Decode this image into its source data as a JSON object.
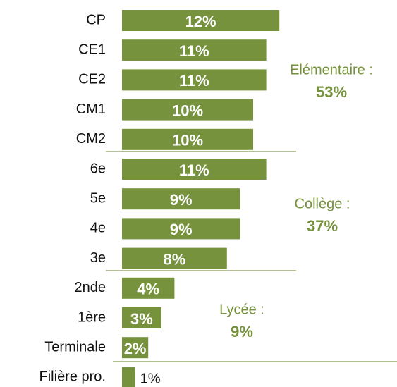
{
  "chart_data": {
    "type": "hbar",
    "categories": [
      "CP",
      "CE1",
      "CE2",
      "CM1",
      "CM2",
      "6e",
      "5e",
      "4e",
      "3e",
      "2nde",
      "1ère",
      "Terminale",
      "Filière pro."
    ],
    "values": [
      12,
      11,
      11,
      10,
      10,
      11,
      9,
      9,
      8,
      4,
      3,
      2,
      1
    ],
    "value_labels": [
      "12%",
      "11%",
      "11%",
      "10%",
      "10%",
      "11%",
      "9%",
      "9%",
      "8%",
      "4%",
      "3%",
      "2%",
      "1%"
    ],
    "color": "#76923c",
    "annotations": [
      {
        "text": "Elémentaire :",
        "total": "53%"
      },
      {
        "text": "Collège :",
        "total": "37%"
      },
      {
        "text": "Lycée :",
        "total": "9%"
      }
    ]
  }
}
